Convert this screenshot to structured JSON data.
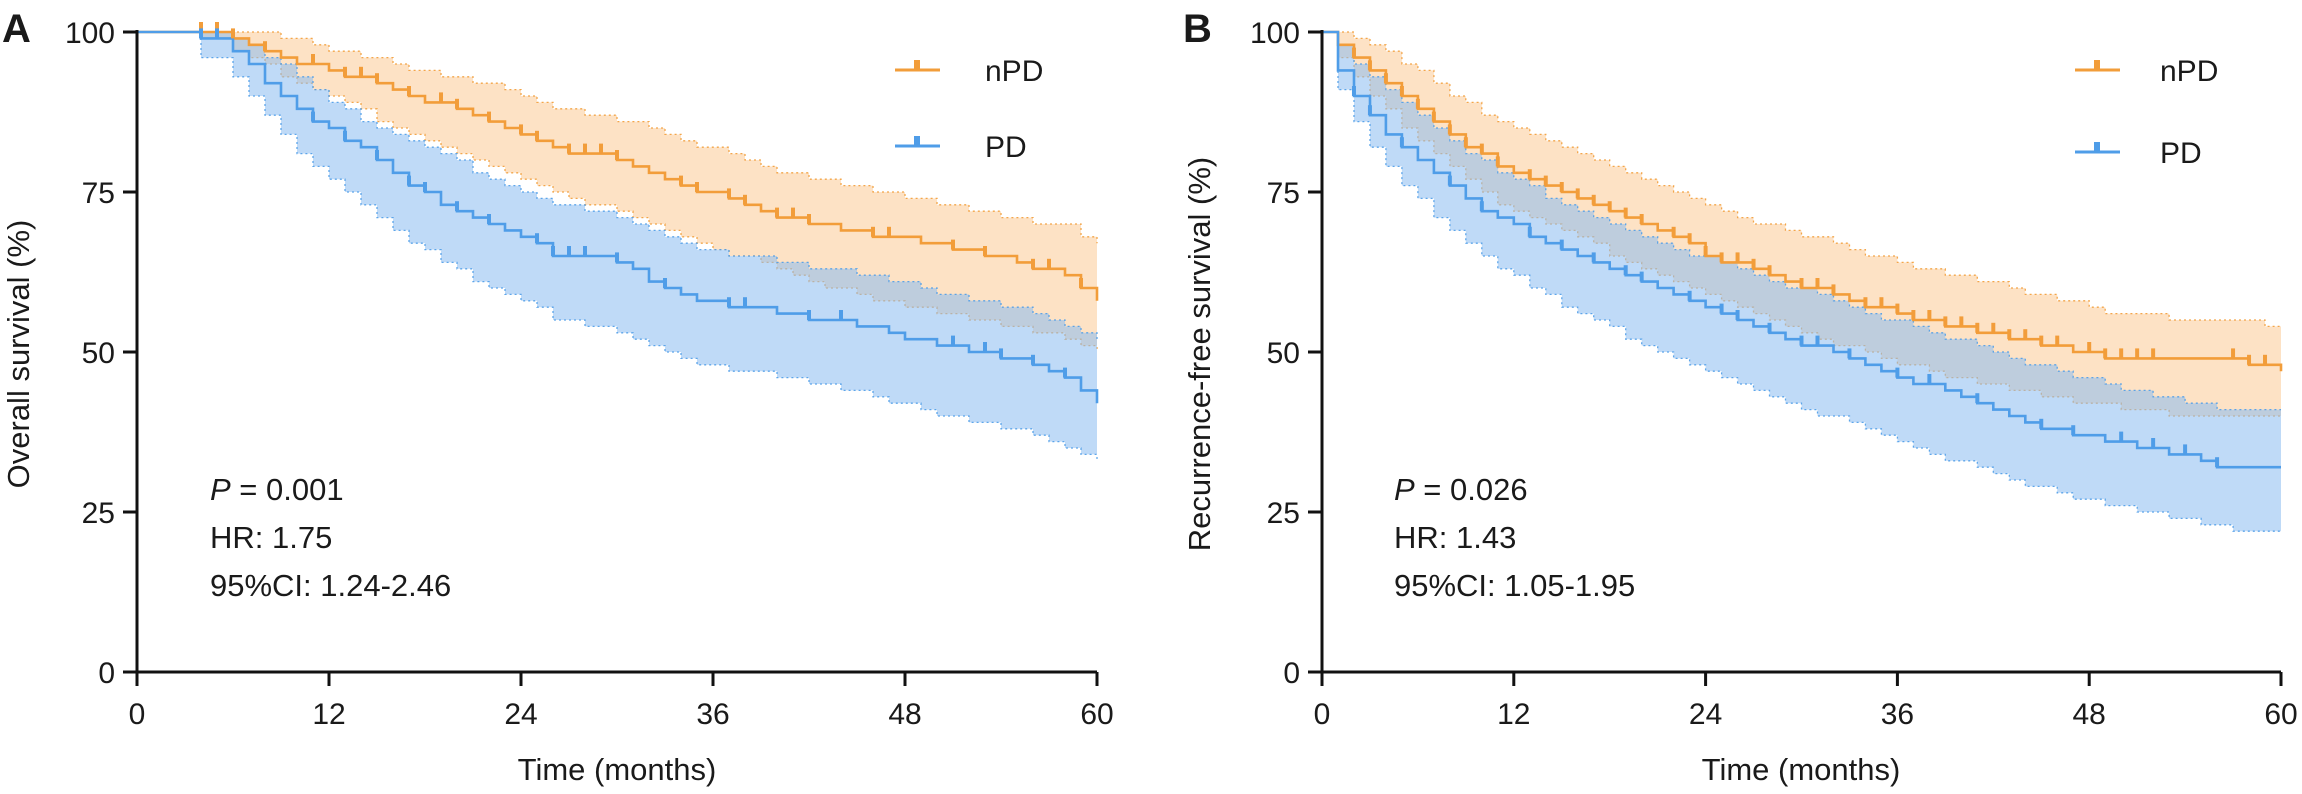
{
  "colors": {
    "npd": "#f29d3a",
    "npd_band": "#fbcf9e",
    "pd": "#4f9de8",
    "pd_band": "#8bbcf1"
  },
  "chart_data": [
    {
      "type": "line",
      "subtype": "kaplan-meier",
      "panel": "A",
      "xlabel": "Time (months)",
      "ylabel": "Overall survival (%)",
      "xlim": [
        0,
        60
      ],
      "ylim": [
        0,
        100
      ],
      "xticks": [
        0,
        12,
        24,
        36,
        48,
        60
      ],
      "yticks": [
        0,
        25,
        50,
        75,
        100
      ],
      "grid": false,
      "legend_position": "top-right",
      "annotations": {
        "p_label": "P",
        "p_value": " = 0.001",
        "hr": "HR: 1.75",
        "ci": "95%CI: 1.24-2.46"
      },
      "series": [
        {
          "name": "nPD",
          "color_key": "npd",
          "x": [
            0,
            4,
            6,
            7,
            8,
            9,
            10,
            11,
            12,
            13,
            14,
            15,
            16,
            17,
            18,
            19,
            20,
            21,
            22,
            23,
            24,
            25,
            26,
            27,
            28,
            30,
            31,
            32,
            33,
            34,
            35,
            36,
            37,
            38,
            39,
            40,
            41,
            42,
            43,
            44,
            45,
            46,
            47,
            48,
            49,
            50,
            51,
            52,
            53,
            54,
            55,
            56,
            57,
            58,
            59,
            60
          ],
          "y": [
            100,
            100,
            99,
            98,
            97,
            96,
            95,
            95,
            94,
            93,
            93,
            92,
            91,
            90,
            89,
            89,
            88,
            87,
            86,
            85,
            84,
            83,
            82,
            81,
            81,
            80,
            79,
            78,
            77,
            76,
            75,
            75,
            74,
            73,
            72,
            71,
            71,
            70,
            70,
            69,
            69,
            68,
            68,
            68,
            67,
            67,
            66,
            66,
            65,
            65,
            64,
            63,
            63,
            62,
            60,
            58
          ],
          "lower": [
            100,
            99,
            97,
            96,
            95,
            93,
            92,
            91,
            90,
            89,
            88,
            86,
            85,
            84,
            83,
            82,
            81,
            80,
            79,
            78,
            77,
            76,
            75,
            74,
            73,
            72,
            71,
            70,
            69,
            68,
            67,
            66,
            65,
            65,
            64,
            63,
            62,
            61,
            60,
            60,
            59,
            58,
            58,
            57,
            57,
            56,
            56,
            55,
            55,
            54,
            54,
            53,
            53,
            52,
            51,
            50
          ],
          "upper": [
            100,
            100,
            100,
            100,
            100,
            99,
            99,
            98,
            97,
            97,
            96,
            96,
            95,
            94,
            94,
            93,
            93,
            92,
            92,
            91,
            90,
            89,
            88,
            88,
            87,
            86,
            86,
            85,
            84,
            83,
            82,
            82,
            81,
            80,
            79,
            78,
            78,
            77,
            77,
            76,
            76,
            75,
            75,
            74,
            74,
            73,
            73,
            72,
            72,
            71,
            71,
            70,
            70,
            70,
            68,
            67
          ],
          "censor_x": [
            4,
            5,
            6,
            8,
            11,
            13,
            14,
            15,
            17,
            19,
            20,
            22,
            24,
            25,
            27,
            28,
            29,
            30,
            34,
            35,
            37,
            38,
            40,
            41,
            42,
            46,
            47,
            51,
            53,
            56,
            57,
            59
          ]
        },
        {
          "name": "PD",
          "color_key": "pd",
          "x": [
            0,
            4,
            6,
            7,
            8,
            9,
            10,
            11,
            12,
            13,
            14,
            15,
            16,
            17,
            18,
            19,
            20,
            21,
            22,
            23,
            24,
            25,
            26,
            28,
            30,
            31,
            32,
            33,
            34,
            35,
            36,
            37,
            38,
            40,
            41,
            42,
            43,
            44,
            45,
            46,
            47,
            48,
            49,
            50,
            51,
            52,
            53,
            54,
            55,
            56,
            57,
            58,
            59,
            60
          ],
          "y": [
            100,
            99,
            97,
            95,
            92,
            90,
            88,
            86,
            85,
            83,
            82,
            80,
            78,
            76,
            75,
            73,
            72,
            71,
            70,
            69,
            68,
            67,
            65,
            65,
            64,
            63,
            61,
            60,
            59,
            58,
            58,
            57,
            57,
            56,
            56,
            55,
            55,
            55,
            54,
            54,
            53,
            52,
            52,
            51,
            51,
            50,
            50,
            49,
            49,
            48,
            47,
            46,
            44,
            42
          ],
          "lower": [
            100,
            96,
            93,
            90,
            87,
            84,
            81,
            79,
            77,
            75,
            73,
            71,
            69,
            67,
            66,
            64,
            63,
            61,
            60,
            59,
            58,
            57,
            55,
            54,
            53,
            52,
            51,
            50,
            49,
            48,
            48,
            47,
            47,
            46,
            46,
            45,
            45,
            44,
            44,
            43,
            42,
            42,
            41,
            40,
            40,
            39,
            39,
            38,
            38,
            37,
            36,
            35,
            34,
            33
          ],
          "upper": [
            100,
            100,
            99,
            98,
            96,
            95,
            93,
            91,
            89,
            88,
            86,
            85,
            84,
            83,
            82,
            81,
            80,
            78,
            77,
            76,
            75,
            74,
            73,
            72,
            71,
            70,
            69,
            68,
            67,
            66,
            66,
            65,
            65,
            64,
            64,
            63,
            63,
            63,
            62,
            62,
            61,
            61,
            60,
            59,
            59,
            58,
            58,
            57,
            57,
            56,
            55,
            54,
            53,
            52
          ],
          "censor_x": [
            4,
            5,
            11,
            13,
            15,
            17,
            18,
            20,
            22,
            25,
            26,
            27,
            28,
            30,
            33,
            37,
            38,
            42,
            44,
            51,
            53,
            54,
            56,
            58
          ]
        }
      ]
    },
    {
      "type": "line",
      "subtype": "kaplan-meier",
      "panel": "B",
      "xlabel": "Time (months)",
      "ylabel": "Recurrence-free survival (%)",
      "xlim": [
        0,
        60
      ],
      "ylim": [
        0,
        100
      ],
      "xticks": [
        0,
        12,
        24,
        36,
        48,
        60
      ],
      "yticks": [
        0,
        25,
        50,
        75,
        100
      ],
      "grid": false,
      "legend_position": "top-right",
      "annotations": {
        "p_label": "P",
        "p_value": " = 0.026",
        "hr": "HR: 1.43",
        "ci": "95%CI: 1.05-1.95"
      },
      "series": [
        {
          "name": "nPD",
          "color_key": "npd",
          "x": [
            0,
            1,
            2,
            3,
            4,
            5,
            6,
            7,
            8,
            9,
            10,
            11,
            12,
            13,
            14,
            15,
            16,
            17,
            18,
            19,
            20,
            21,
            22,
            23,
            24,
            25,
            26,
            27,
            28,
            29,
            30,
            31,
            32,
            33,
            34,
            35,
            36,
            37,
            38,
            39,
            40,
            41,
            42,
            43,
            44,
            45,
            46,
            47,
            48,
            49,
            50,
            51,
            52,
            53,
            54,
            55,
            56,
            57,
            58,
            59,
            60
          ],
          "y": [
            100,
            98,
            96,
            94,
            92,
            90,
            88,
            86,
            84,
            82,
            81,
            79,
            78,
            77,
            76,
            75,
            74,
            73,
            72,
            71,
            70,
            69,
            68,
            67,
            65,
            64,
            64,
            63,
            62,
            61,
            60,
            60,
            59,
            58,
            57,
            57,
            56,
            55,
            55,
            54,
            54,
            53,
            53,
            52,
            52,
            51,
            51,
            50,
            50,
            49,
            49,
            49,
            49,
            49,
            49,
            49,
            49,
            49,
            48,
            48,
            47
          ],
          "lower": [
            100,
            96,
            93,
            90,
            88,
            85,
            83,
            81,
            79,
            77,
            75,
            73,
            72,
            71,
            70,
            69,
            68,
            67,
            65,
            64,
            63,
            62,
            61,
            60,
            59,
            58,
            57,
            56,
            55,
            54,
            53,
            52,
            51,
            51,
            50,
            49,
            48,
            48,
            47,
            46,
            46,
            45,
            45,
            44,
            44,
            43,
            43,
            42,
            42,
            42,
            41,
            41,
            41,
            40,
            40,
            40,
            40,
            40,
            40,
            40,
            40
          ],
          "upper": [
            100,
            100,
            99,
            98,
            97,
            95,
            94,
            92,
            90,
            89,
            87,
            86,
            85,
            84,
            83,
            82,
            81,
            80,
            79,
            78,
            77,
            76,
            75,
            74,
            73,
            72,
            71,
            70,
            70,
            69,
            68,
            68,
            67,
            66,
            65,
            65,
            64,
            63,
            63,
            62,
            62,
            61,
            61,
            60,
            59,
            59,
            58,
            58,
            57,
            56,
            56,
            56,
            56,
            55,
            55,
            55,
            55,
            55,
            55,
            54,
            54
          ],
          "censor_x": [
            2,
            3,
            4,
            5,
            6,
            7,
            8,
            9,
            10,
            11,
            13,
            14,
            15,
            16,
            17,
            18,
            19,
            20,
            22,
            23,
            24,
            25,
            26,
            27,
            28,
            30,
            31,
            32,
            34,
            35,
            36,
            37,
            38,
            39,
            40,
            41,
            42,
            43,
            44,
            45,
            46,
            48,
            49,
            50,
            51,
            52,
            57,
            58,
            59
          ]
        },
        {
          "name": "PD",
          "color_key": "pd",
          "x": [
            0,
            1,
            2,
            3,
            4,
            5,
            6,
            7,
            8,
            9,
            10,
            11,
            12,
            13,
            14,
            15,
            16,
            17,
            18,
            19,
            20,
            21,
            22,
            23,
            24,
            25,
            26,
            27,
            28,
            29,
            30,
            31,
            32,
            33,
            34,
            35,
            36,
            37,
            38,
            39,
            40,
            41,
            42,
            43,
            44,
            45,
            46,
            47,
            48,
            49,
            50,
            51,
            52,
            53,
            54,
            55,
            56,
            57,
            58,
            59,
            60
          ],
          "y": [
            100,
            94,
            90,
            87,
            84,
            82,
            80,
            78,
            76,
            74,
            72,
            71,
            70,
            68,
            67,
            66,
            65,
            64,
            63,
            62,
            61,
            60,
            59,
            58,
            57,
            56,
            55,
            54,
            53,
            52,
            51,
            51,
            50,
            49,
            48,
            47,
            46,
            45,
            45,
            44,
            43,
            42,
            41,
            40,
            39,
            38,
            38,
            37,
            37,
            36,
            36,
            35,
            35,
            34,
            34,
            33,
            32,
            32,
            32,
            32,
            32
          ],
          "lower": [
            100,
            91,
            86,
            82,
            79,
            76,
            74,
            71,
            69,
            67,
            65,
            63,
            62,
            60,
            59,
            57,
            56,
            55,
            54,
            52,
            51,
            50,
            49,
            48,
            47,
            46,
            45,
            44,
            43,
            42,
            41,
            40,
            40,
            39,
            38,
            37,
            36,
            35,
            34,
            33,
            33,
            32,
            31,
            30,
            29,
            29,
            28,
            27,
            27,
            26,
            26,
            25,
            25,
            24,
            24,
            23,
            23,
            22,
            22,
            22,
            22
          ],
          "upper": [
            100,
            98,
            95,
            93,
            91,
            89,
            87,
            85,
            83,
            81,
            80,
            78,
            77,
            76,
            74,
            73,
            72,
            71,
            70,
            69,
            68,
            67,
            66,
            65,
            65,
            64,
            63,
            62,
            61,
            60,
            60,
            59,
            58,
            57,
            56,
            55,
            55,
            54,
            53,
            52,
            52,
            51,
            50,
            49,
            48,
            48,
            47,
            46,
            46,
            45,
            44,
            44,
            43,
            43,
            42,
            42,
            41,
            41,
            41,
            41,
            41
          ],
          "censor_x": [
            2,
            3,
            5,
            8,
            10,
            13,
            15,
            17,
            19,
            20,
            23,
            25,
            26,
            28,
            30,
            31,
            33,
            36,
            38,
            41,
            45,
            47,
            50,
            52,
            54,
            56
          ]
        }
      ]
    }
  ]
}
